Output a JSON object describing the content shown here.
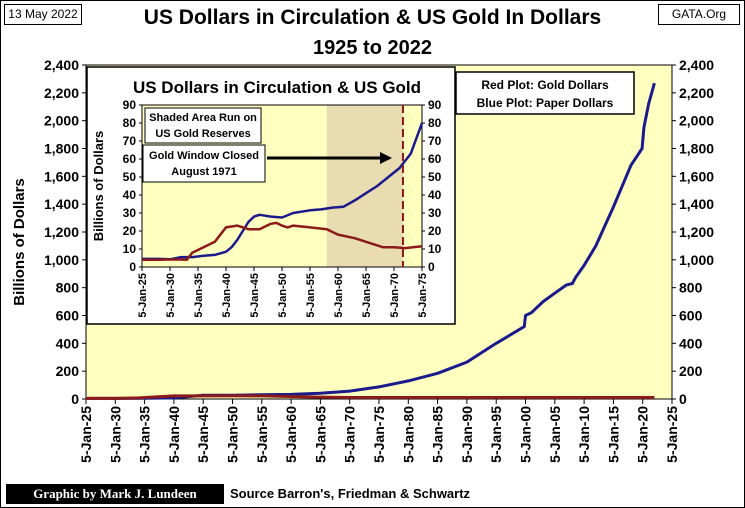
{
  "header": {
    "date": "13 May 2022",
    "site": "GATA.Org",
    "title": "US Dollars in Circulation & US Gold In Dollars",
    "subtitle": "1925 to 2022"
  },
  "footer": {
    "credit": "Graphic by Mark J. Lundeen",
    "source": "Source Barron's, Friedman & Schwartz"
  },
  "legend": {
    "line1": "Red Plot: Gold Dollars",
    "line2": "Blue Plot: Paper Dollars"
  },
  "colors": {
    "paper": "#1a1a8c",
    "gold": "#8b1a1a",
    "plot_bg": "#ffffc0",
    "shade": "#e8dcb0"
  },
  "chart_data": [
    {
      "type": "line",
      "ylabel": "Billions of Dollars",
      "ylim": [
        0,
        2400
      ],
      "yticks": [
        "0",
        "200",
        "400",
        "600",
        "800",
        "1,000",
        "1,200",
        "1,400",
        "1,600",
        "1,800",
        "2,000",
        "2,200",
        "2,400"
      ],
      "xlim": [
        1925,
        2025
      ],
      "xticks": [
        "5-Jan-25",
        "5-Jan-30",
        "5-Jan-35",
        "5-Jan-40",
        "5-Jan-45",
        "5-Jan-50",
        "5-Jan-55",
        "5-Jan-60",
        "5-Jan-65",
        "5-Jan-70",
        "5-Jan-75",
        "5-Jan-80",
        "5-Jan-85",
        "5-Jan-90",
        "5-Jan-95",
        "5-Jan-00",
        "5-Jan-05",
        "5-Jan-10",
        "5-Jan-15",
        "5-Jan-20",
        "5-Jan-25"
      ],
      "grid": false,
      "series": [
        {
          "legend_key": "Blue Plot",
          "x": [
            1925,
            1930,
            1935,
            1940,
            1945,
            1950,
            1955,
            1960,
            1965,
            1970,
            1975,
            1980,
            1985,
            1990,
            1995,
            1999.8,
            2000,
            2001,
            2003,
            2005,
            2007,
            2008,
            2008.5,
            2010,
            2012,
            2015,
            2018,
            2019.9,
            2020.2,
            2021,
            2022
          ],
          "y": [
            4,
            4,
            5,
            8,
            27,
            27,
            31,
            33,
            42,
            57,
            87,
            130,
            185,
            265,
            400,
            520,
            600,
            620,
            700,
            760,
            820,
            830,
            870,
            960,
            1100,
            1380,
            1680,
            1800,
            1950,
            2120,
            2270
          ]
        },
        {
          "legend_key": "Red Plot",
          "x": [
            1925,
            1930,
            1934,
            1940,
            1945,
            1950,
            1955,
            1960,
            1965,
            1970,
            1975,
            1980,
            1990,
            2000,
            2010,
            2022
          ],
          "y": [
            4,
            4,
            8,
            22,
            22,
            24,
            22,
            18,
            14,
            11,
            11,
            11,
            11,
            11,
            11,
            11
          ]
        }
      ]
    },
    {
      "type": "line",
      "title": "US Dollars in Circulation & US Gold",
      "ylabel": "Billions  of  Dollars",
      "ylim": [
        0,
        90
      ],
      "yticks": [
        "0",
        "10",
        "20",
        "30",
        "40",
        "50",
        "60",
        "70",
        "80",
        "90"
      ],
      "xlim": [
        1925,
        1975
      ],
      "xticks": [
        "5-Jan-25",
        "5-Jan-30",
        "5-Jan-35",
        "5-Jan-40",
        "5-Jan-45",
        "5-Jan-50",
        "5-Jan-55",
        "5-Jan-60",
        "5-Jan-65",
        "5-Jan-70",
        "5-Jan-75"
      ],
      "shaded_region": [
        1958,
        1971.6
      ],
      "gold_window_closed": 1971.6,
      "annotations": {
        "shaded_label_1": "Shaded Area Run on",
        "shaded_label_2": "US Gold Reserves",
        "window_label_1": "Gold Window Closed",
        "window_label_2": "August 1971"
      },
      "series": [
        {
          "legend_key": "Paper",
          "x": [
            1925,
            1928,
            1930,
            1932,
            1934,
            1936,
            1938,
            1940,
            1941,
            1942,
            1943,
            1944,
            1945,
            1946,
            1947,
            1948,
            1950,
            1952,
            1955,
            1957,
            1959,
            1961,
            1963,
            1965,
            1967,
            1969,
            1971,
            1973,
            1975
          ],
          "y": [
            4.5,
            4.5,
            4.3,
            5.5,
            5.5,
            6.2,
            6.7,
            8.5,
            11,
            15,
            20,
            25,
            28,
            29,
            28.5,
            28,
            27.5,
            30,
            31.5,
            32,
            33,
            33.5,
            37,
            41,
            45,
            50,
            55,
            63,
            80
          ]
        },
        {
          "legend_key": "Gold",
          "x": [
            1925,
            1928,
            1931,
            1933,
            1934,
            1936,
            1938,
            1940,
            1942,
            1944,
            1946,
            1948,
            1949,
            1950,
            1951,
            1952,
            1955,
            1958,
            1960,
            1963,
            1965,
            1968,
            1970,
            1972,
            1975
          ],
          "y": [
            4,
            4,
            4.2,
            4,
            8,
            11,
            14,
            22,
            23,
            21,
            21,
            24,
            24.5,
            23,
            22,
            23,
            22,
            21,
            18,
            16,
            14,
            11,
            11,
            10.5,
            11.5
          ]
        }
      ]
    }
  ]
}
